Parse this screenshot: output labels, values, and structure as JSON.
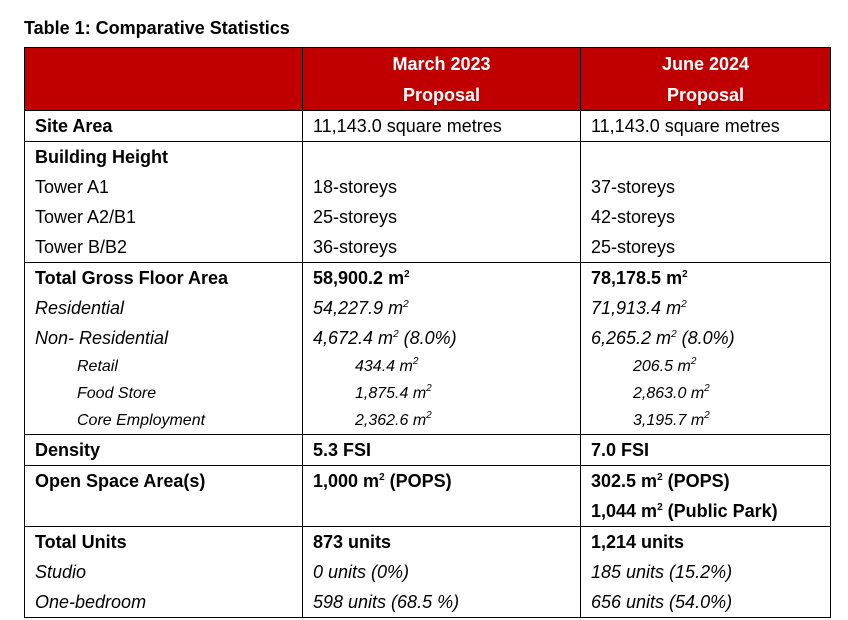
{
  "caption": "Table 1: Comparative Statistics",
  "header": {
    "col1": "",
    "col2": [
      "March 2023",
      "Proposal"
    ],
    "col3": [
      "June 2024",
      "Proposal"
    ]
  },
  "site_area": {
    "label": "Site Area",
    "v1": "11,143.0 square metres",
    "v2": "11,143.0 square metres"
  },
  "building_height": {
    "label": "Building Height",
    "rows": [
      {
        "label": "Tower A1",
        "v1": "18-storeys",
        "v2": "37-storeys"
      },
      {
        "label": "Tower A2/B1",
        "v1": "25-storeys",
        "v2": "42-storeys"
      },
      {
        "label": "Tower B/B2",
        "v1": "36-storeys",
        "v2": "25-storeys"
      }
    ]
  },
  "gfa": {
    "total": {
      "label": "Total Gross Floor Area",
      "v1": "58,900.2 m",
      "v2": "78,178.5 m"
    },
    "residential": {
      "label": "Residential",
      "v1": "54,227.9 m",
      "v2": "71,913.4 m"
    },
    "non_residential": {
      "label": "Non- Residential",
      "v1": "4,672.4 m",
      "v1_suffix": " (8.0%)",
      "v2": "6,265.2 m",
      "v2_suffix": " (8.0%)"
    },
    "sub": [
      {
        "label": "Retail",
        "v1": "434.4 m",
        "v2": "206.5 m"
      },
      {
        "label": "Food Store",
        "v1": "1,875.4 m",
        "v2": "2,863.0 m"
      },
      {
        "label": "Core Employment",
        "v1": "2,362.6 m",
        "v2": "3,195.7 m"
      }
    ],
    "sup": "2"
  },
  "density": {
    "label": "Density",
    "v1": "5.3 FSI",
    "v2": "7.0 FSI"
  },
  "open_space": {
    "label": "Open Space Area(s)",
    "v1": "1,000 m",
    "v1_suffix": " (POPS)",
    "v2a": "302.5 m",
    "v2a_suffix": " (POPS)",
    "v2b": "1,044 m",
    "v2b_suffix": " (Public Park)"
  },
  "units": {
    "total": {
      "label": "Total Units",
      "v1": "873 units",
      "v2": "1,214 units"
    },
    "rows": [
      {
        "label": "Studio",
        "v1": "0 units (0%)",
        "v2": "185 units (15.2%)"
      },
      {
        "label": "One-bedroom",
        "v1": "598 units (68.5 %)",
        "v2": "656 units (54.0%)"
      }
    ]
  }
}
